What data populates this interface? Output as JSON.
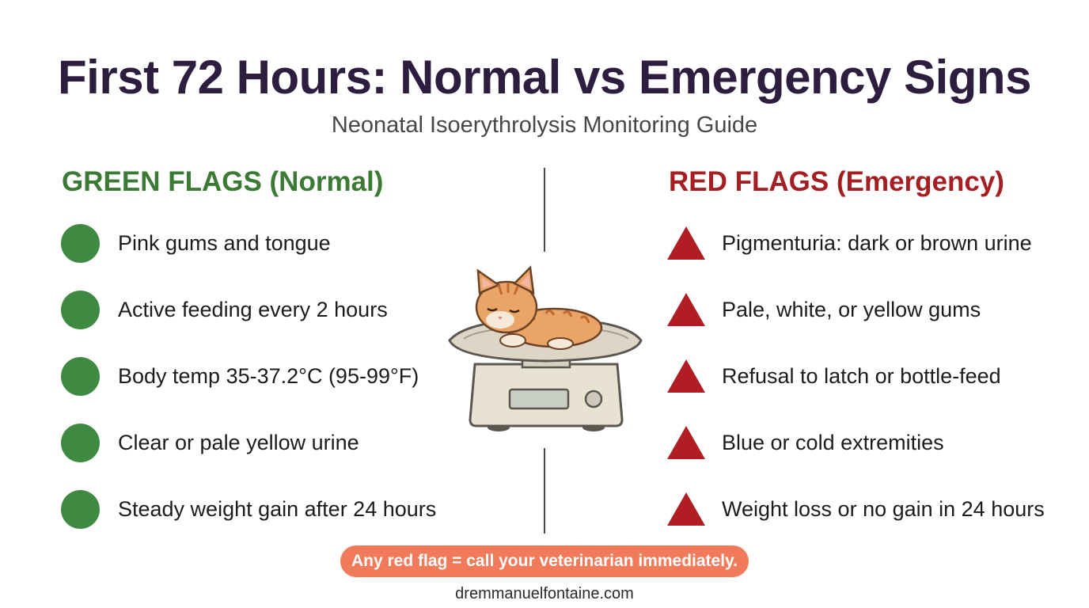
{
  "header": {
    "title": "First 72 Hours: Normal vs Emergency Signs",
    "subtitle": "Neonatal Isoerythrolysis Monitoring Guide"
  },
  "green_flags": {
    "heading": "GREEN FLAGS (Normal)",
    "icon": "green-circle",
    "color": "#3f8a42",
    "items": [
      "Pink gums and tongue",
      "Active feeding every 2 hours",
      "Body temp 35-37.2°C (95-99°F)",
      "Clear or pale yellow urine",
      "Steady weight gain after 24 hours"
    ]
  },
  "red_flags": {
    "heading": "RED FLAGS (Emergency)",
    "icon": "red-warning-triangle",
    "color": "#b01e24",
    "items": [
      "Pigmenturia: dark or brown urine",
      "Pale, white, or yellow gums",
      "Refusal to latch or bottle-feed",
      "Blue or cold extremities",
      "Weight loss or no gain in 24 hours"
    ]
  },
  "illustration": {
    "icon": "kitten-on-scale-illustration"
  },
  "callout": {
    "text": "Any red flag = call your veterinarian immediately.",
    "color": "#f07a5a"
  },
  "footer": {
    "website": "dremmanuelfontaine.com"
  }
}
